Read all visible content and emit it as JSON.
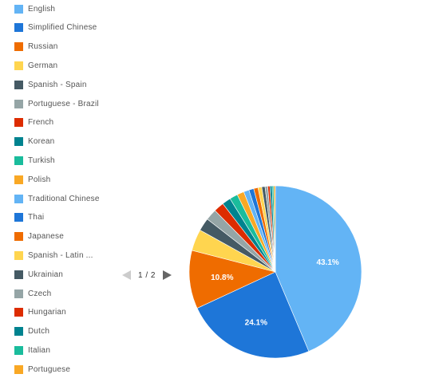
{
  "legend": {
    "items": [
      {
        "label": "English",
        "color": "#63b4f5"
      },
      {
        "label": "Simplified Chinese",
        "color": "#1e76d8"
      },
      {
        "label": "Russian",
        "color": "#ef6c00"
      },
      {
        "label": "German",
        "color": "#ffd54f"
      },
      {
        "label": "Spanish - Spain",
        "color": "#455a64"
      },
      {
        "label": "Portuguese - Brazil",
        "color": "#95a5a6"
      },
      {
        "label": "French",
        "color": "#dd2c00"
      },
      {
        "label": "Korean",
        "color": "#00838f"
      },
      {
        "label": "Turkish",
        "color": "#1abc9c"
      },
      {
        "label": "Polish",
        "color": "#f9a825"
      },
      {
        "label": "Traditional Chinese",
        "color": "#63b4f5"
      },
      {
        "label": "Thai",
        "color": "#1e76d8"
      },
      {
        "label": "Japanese",
        "color": "#ef6c00"
      },
      {
        "label": "Spanish - Latin ...",
        "color": "#ffd54f"
      },
      {
        "label": "Ukrainian",
        "color": "#455a64"
      },
      {
        "label": "Czech",
        "color": "#95a5a6"
      },
      {
        "label": "Hungarian",
        "color": "#dd2c00"
      },
      {
        "label": "Dutch",
        "color": "#00838f"
      },
      {
        "label": "Italian",
        "color": "#1abc9c"
      },
      {
        "label": "Portuguese",
        "color": "#f9a825"
      }
    ]
  },
  "pager": {
    "text": "1 / 2",
    "prev_color": "#cccccc",
    "next_color": "#666666"
  },
  "chart_data": {
    "type": "pie",
    "start_angle_deg": 0,
    "direction": "clockwise",
    "slices": [
      {
        "name": "English",
        "value": 43.1,
        "color": "#63b4f5",
        "label": "43.1%"
      },
      {
        "name": "Simplified Chinese",
        "value": 24.1,
        "color": "#1e76d8",
        "label": "24.1%"
      },
      {
        "name": "Russian",
        "value": 10.8,
        "color": "#ef6c00",
        "label": "10.8%"
      },
      {
        "name": "German",
        "value": 4.0,
        "color": "#ffd54f",
        "label": ""
      },
      {
        "name": "Spanish - Spain",
        "value": 2.4,
        "color": "#455a64",
        "label": ""
      },
      {
        "name": "Portuguese - Brazil",
        "value": 2.1,
        "color": "#95a5a6",
        "label": ""
      },
      {
        "name": "French",
        "value": 1.9,
        "color": "#dd2c00",
        "label": ""
      },
      {
        "name": "Korean",
        "value": 1.6,
        "color": "#00838f",
        "label": ""
      },
      {
        "name": "Turkish",
        "value": 1.5,
        "color": "#1abc9c",
        "label": ""
      },
      {
        "name": "Polish",
        "value": 1.3,
        "color": "#f9a825",
        "label": ""
      },
      {
        "name": "Traditional Chinese",
        "value": 1.0,
        "color": "#63b4f5",
        "label": ""
      },
      {
        "name": "Thai",
        "value": 0.9,
        "color": "#1e76d8",
        "label": ""
      },
      {
        "name": "Japanese",
        "value": 0.8,
        "color": "#ef6c00",
        "label": ""
      },
      {
        "name": "Spanish - Latin ...",
        "value": 0.7,
        "color": "#ffd54f",
        "label": ""
      },
      {
        "name": "Ukrainian",
        "value": 0.6,
        "color": "#455a64",
        "label": ""
      },
      {
        "name": "Czech",
        "value": 0.5,
        "color": "#95a5a6",
        "label": ""
      },
      {
        "name": "Hungarian",
        "value": 0.4,
        "color": "#dd2c00",
        "label": ""
      },
      {
        "name": "Dutch",
        "value": 0.4,
        "color": "#00838f",
        "label": ""
      },
      {
        "name": "Italian",
        "value": 0.3,
        "color": "#1abc9c",
        "label": ""
      },
      {
        "name": "Portuguese",
        "value": 0.3,
        "color": "#f9a825",
        "label": ""
      }
    ]
  }
}
